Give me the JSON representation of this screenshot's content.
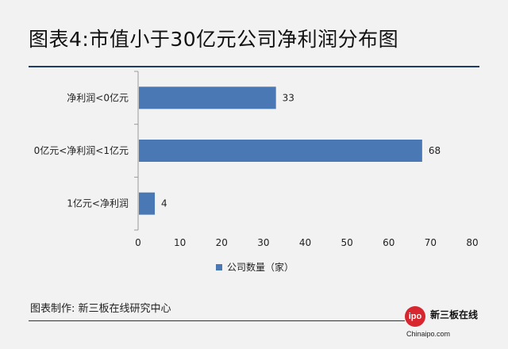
{
  "title": "图表4:市值小于30亿元公司净利润分布图",
  "source": "图表制作: 新三板在线研究中心",
  "logo": {
    "mark": "ipo",
    "cn": "新三板在线",
    "url": "Chinaipo.com"
  },
  "colors": {
    "bar": "#4a78b5",
    "title_rule": "#1f3d63",
    "logo": "#d7262f"
  },
  "chart_data": {
    "type": "bar",
    "orientation": "horizontal",
    "categories": [
      "净利润<0亿元",
      "0亿元<净利润<1亿元",
      "1亿元<净利润"
    ],
    "series": [
      {
        "name": "公司数量（家）",
        "values": [
          33,
          68,
          4
        ]
      }
    ],
    "xlim": [
      0,
      80
    ],
    "xticks": [
      0,
      10,
      20,
      30,
      40,
      50,
      60,
      70,
      80
    ],
    "grid": false,
    "legend": "bottom"
  }
}
